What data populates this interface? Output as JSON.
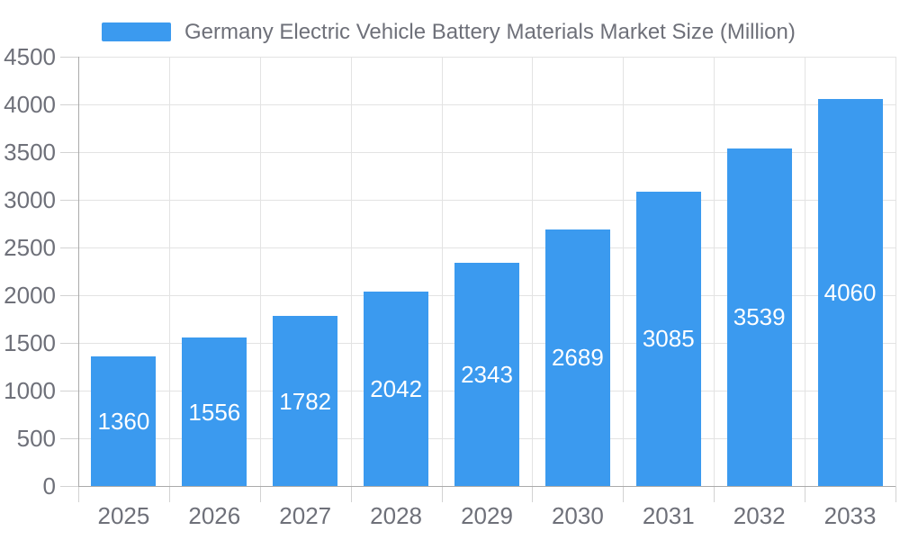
{
  "chart_data": {
    "type": "bar",
    "title": "Germany Electric Vehicle Battery Materials Market Size (Million)",
    "legend_position": "top",
    "categories": [
      "2025",
      "2026",
      "2027",
      "2028",
      "2029",
      "2030",
      "2031",
      "2032",
      "2033"
    ],
    "series": [
      {
        "name": "Germany Electric Vehicle Battery Materials Market Size (Million)",
        "values": [
          1360,
          1556,
          1782,
          2042,
          2343,
          2689,
          3085,
          3539,
          4060
        ]
      }
    ],
    "xlabel": "",
    "ylabel": "",
    "ylim": [
      0,
      4500
    ],
    "yticks": [
      0,
      500,
      1000,
      1500,
      2000,
      2500,
      3000,
      3500,
      4000,
      4500
    ],
    "grid": true,
    "bar_value_labels_inside": true,
    "colors": {
      "bar": "#3B9AEF",
      "bar_label_text": "#ffffff",
      "axis_line": "#aaaaaa",
      "grid_line": "#e3e3e3",
      "tick_line": "#d2d2d2",
      "text": "#6e7079",
      "background": "#ffffff"
    }
  }
}
